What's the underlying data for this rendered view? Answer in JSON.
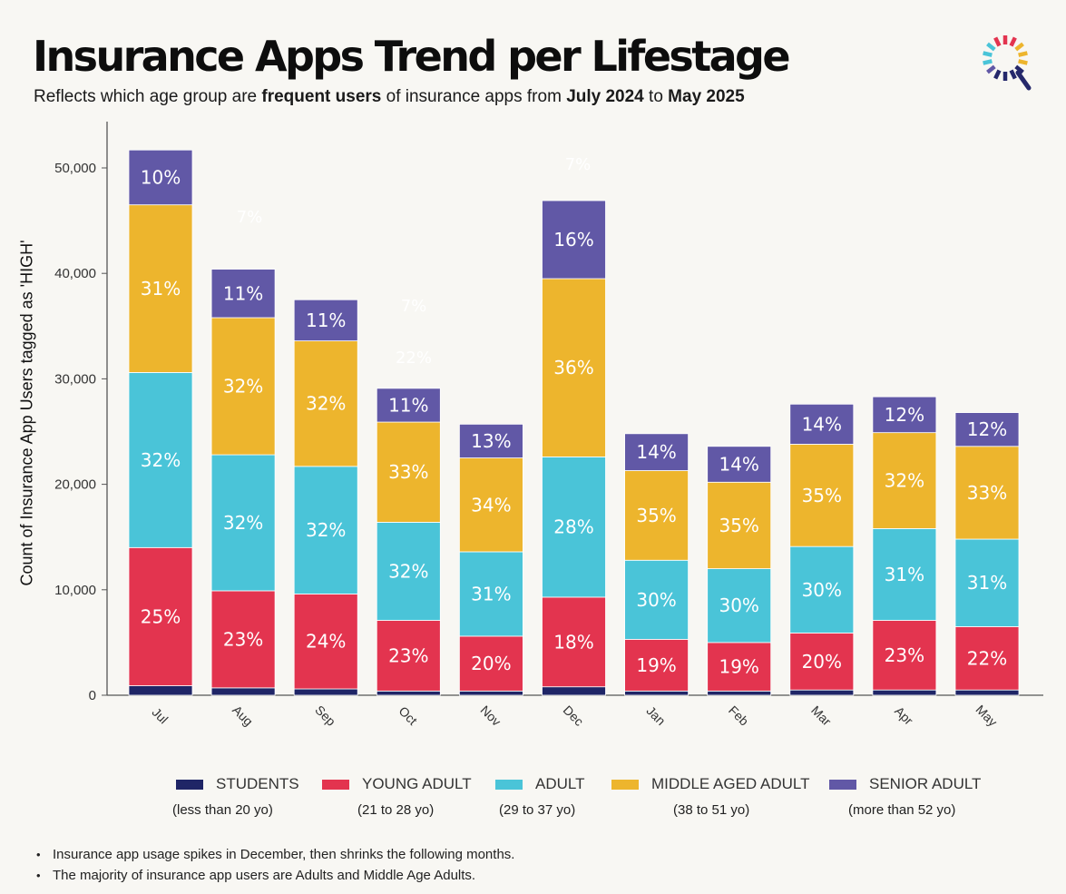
{
  "title": "Insurance Apps Trend per Lifestage",
  "subtitle": {
    "prefix": "Reflects which age group are ",
    "bold1": "frequent users",
    "middle": " of insurance apps from ",
    "bold2": "July 2024",
    "to": " to ",
    "bold3": "May 2025"
  },
  "notes": [
    "Insurance app usage spikes in December, then shrinks the following months.",
    "The majority of insurance app users are Adults and Middle Age Adults."
  ],
  "legend_ranges": [
    "(less than 20  yo)",
    "(21  to  28  yo)",
    "(29  to  37  yo)",
    "(38  to  51  yo)",
    "(more than 52  yo)"
  ],
  "ghost_labels": [
    "7%",
    "7%",
    "7%",
    "22%"
  ],
  "chart_data": {
    "type": "bar",
    "stacked": true,
    "categories": [
      "Jul",
      "Aug",
      "Sep",
      "Oct",
      "Nov",
      "Dec",
      "Jan",
      "Feb",
      "Mar",
      "Apr",
      "May"
    ],
    "ylabel": "Count of Insurance App Users tagged as 'HIGH'",
    "ylim": [
      0,
      55000
    ],
    "yticks": [
      0,
      10000,
      20000,
      30000,
      40000,
      50000
    ],
    "ytick_labels": [
      "0",
      "10,000",
      "20,000",
      "30,000",
      "40,000",
      "50,000"
    ],
    "grid": false,
    "legend_position": "bottom",
    "series": [
      {
        "name": "STUDENTS",
        "color": "#1f2566",
        "values": [
          900,
          700,
          600,
          400,
          400,
          800,
          400,
          400,
          500,
          500,
          500
        ]
      },
      {
        "name": "YOUNG ADULT",
        "color": "#e3344f",
        "values": [
          13100,
          9200,
          9000,
          6700,
          5200,
          8500,
          4900,
          4600,
          5400,
          6600,
          6000
        ],
        "labels": [
          "25%",
          "23%",
          "24%",
          "23%",
          "20%",
          "18%",
          "19%",
          "19%",
          "20%",
          "23%",
          "22%"
        ]
      },
      {
        "name": "ADULT",
        "color": "#4ac4d8",
        "values": [
          16600,
          12900,
          12100,
          9300,
          8000,
          13300,
          7500,
          7000,
          8200,
          8700,
          8300
        ],
        "labels": [
          "32%",
          "32%",
          "32%",
          "32%",
          "31%",
          "28%",
          "30%",
          "30%",
          "30%",
          "31%",
          "31%"
        ]
      },
      {
        "name": "MIDDLE AGED ADULT",
        "color": "#edb52d",
        "values": [
          15900,
          13000,
          11900,
          9500,
          8900,
          16900,
          8500,
          8200,
          9700,
          9100,
          8800
        ],
        "labels": [
          "31%",
          "32%",
          "32%",
          "33%",
          "34%",
          "36%",
          "35%",
          "35%",
          "35%",
          "32%",
          "33%"
        ]
      },
      {
        "name": "SENIOR ADULT",
        "color": "#6158a6",
        "values": [
          5200,
          4600,
          3900,
          3200,
          3200,
          7400,
          3500,
          3400,
          3800,
          3400,
          3200
        ],
        "labels": [
          "10%",
          "11%",
          "11%",
          "11%",
          "13%",
          "16%",
          "14%",
          "14%",
          "14%",
          "12%",
          "12%"
        ]
      }
    ]
  }
}
